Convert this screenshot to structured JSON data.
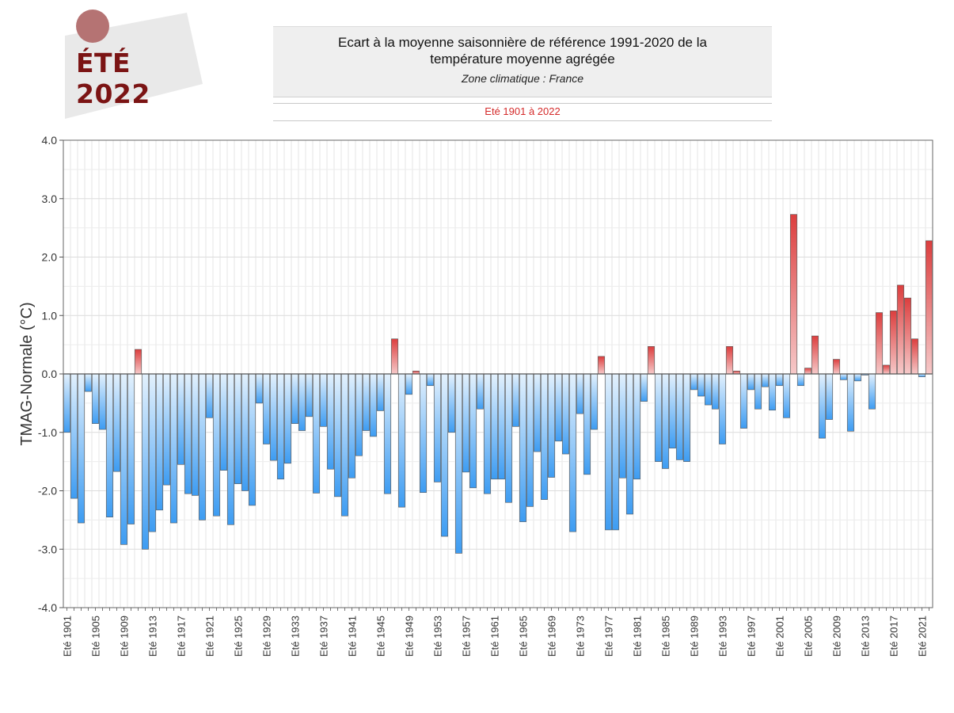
{
  "badge": {
    "label": "ÉTÉ 2022"
  },
  "header": {
    "title": "Ecart à la moyenne saisonnière  de référence 1991-2020  de la température moyenne  agrégée",
    "zone": "Zone climatique : France",
    "period": "Eté 1901 à 2022"
  },
  "colors": {
    "badge_bg": "#e9e9e9",
    "badge_dot": "#b57373",
    "badge_text": "#7b1414",
    "warm": "#d94848",
    "cold": "#3d9cf2",
    "period_text": "#d42a2a"
  },
  "chart_data": {
    "type": "bar",
    "title": "",
    "xlabel": "",
    "ylabel": "TMAG-Normale (°C)",
    "ylim": [
      -4.0,
      4.0
    ],
    "yticks": [
      "-4.0",
      "-3.0",
      "-2.0",
      "-1.0",
      "0.0",
      "1.0",
      "2.0",
      "3.0",
      "4.0"
    ],
    "grid": true,
    "tick_label_prefix": "Eté",
    "tick_every": 4,
    "categories": [
      "1901",
      "1902",
      "1903",
      "1904",
      "1905",
      "1906",
      "1907",
      "1908",
      "1909",
      "1910",
      "1911",
      "1912",
      "1913",
      "1914",
      "1915",
      "1916",
      "1917",
      "1918",
      "1919",
      "1920",
      "1921",
      "1922",
      "1923",
      "1924",
      "1925",
      "1926",
      "1927",
      "1928",
      "1929",
      "1930",
      "1931",
      "1932",
      "1933",
      "1934",
      "1935",
      "1936",
      "1937",
      "1938",
      "1939",
      "1940",
      "1941",
      "1942",
      "1943",
      "1944",
      "1945",
      "1946",
      "1947",
      "1948",
      "1949",
      "1950",
      "1951",
      "1952",
      "1953",
      "1954",
      "1955",
      "1956",
      "1957",
      "1958",
      "1959",
      "1960",
      "1961",
      "1962",
      "1963",
      "1964",
      "1965",
      "1966",
      "1967",
      "1968",
      "1969",
      "1970",
      "1971",
      "1972",
      "1973",
      "1974",
      "1975",
      "1976",
      "1977",
      "1978",
      "1979",
      "1980",
      "1981",
      "1982",
      "1983",
      "1984",
      "1985",
      "1986",
      "1987",
      "1988",
      "1989",
      "1990",
      "1991",
      "1992",
      "1993",
      "1994",
      "1995",
      "1996",
      "1997",
      "1998",
      "1999",
      "2000",
      "2001",
      "2002",
      "2003",
      "2004",
      "2005",
      "2006",
      "2007",
      "2008",
      "2009",
      "2010",
      "2011",
      "2012",
      "2013",
      "2014",
      "2015",
      "2016",
      "2017",
      "2018",
      "2019",
      "2020",
      "2021",
      "2022"
    ],
    "values": [
      -1.0,
      -2.13,
      -2.55,
      -0.3,
      -0.85,
      -0.95,
      -2.45,
      -1.67,
      -2.92,
      -2.57,
      0.42,
      -3.0,
      -2.7,
      -2.33,
      -1.9,
      -2.55,
      -1.55,
      -2.05,
      -2.08,
      -2.5,
      -0.75,
      -2.43,
      -1.65,
      -2.58,
      -1.88,
      -2.0,
      -2.25,
      -0.5,
      -1.2,
      -1.48,
      -1.8,
      -1.53,
      -0.85,
      -0.97,
      -0.73,
      -2.04,
      -0.9,
      -1.63,
      -2.1,
      -2.43,
      -1.78,
      -1.4,
      -0.97,
      -1.07,
      -0.63,
      -2.05,
      0.6,
      -2.28,
      -0.35,
      0.05,
      -2.03,
      -0.2,
      -1.85,
      -2.78,
      -1.0,
      -3.07,
      -1.68,
      -1.95,
      -0.6,
      -2.05,
      -1.8,
      -1.8,
      -2.2,
      -0.9,
      -2.53,
      -2.27,
      -1.33,
      -2.15,
      -1.77,
      -1.15,
      -1.37,
      -2.7,
      -0.68,
      -1.72,
      -0.95,
      0.3,
      -2.67,
      -2.67,
      -1.78,
      -2.4,
      -1.8,
      -0.47,
      0.47,
      -1.5,
      -1.62,
      -1.27,
      -1.47,
      -1.5,
      -0.27,
      -0.38,
      -0.53,
      -0.6,
      -1.2,
      0.47,
      0.05,
      -0.93,
      -0.27,
      -0.6,
      -0.22,
      -0.62,
      -0.2,
      -0.75,
      2.73,
      -0.2,
      0.1,
      0.65,
      -1.1,
      -0.78,
      0.25,
      -0.1,
      -0.98,
      -0.12,
      -0.02,
      -0.6,
      1.05,
      0.15,
      1.08,
      1.52,
      1.3,
      0.6,
      -0.05,
      2.28
    ]
  }
}
